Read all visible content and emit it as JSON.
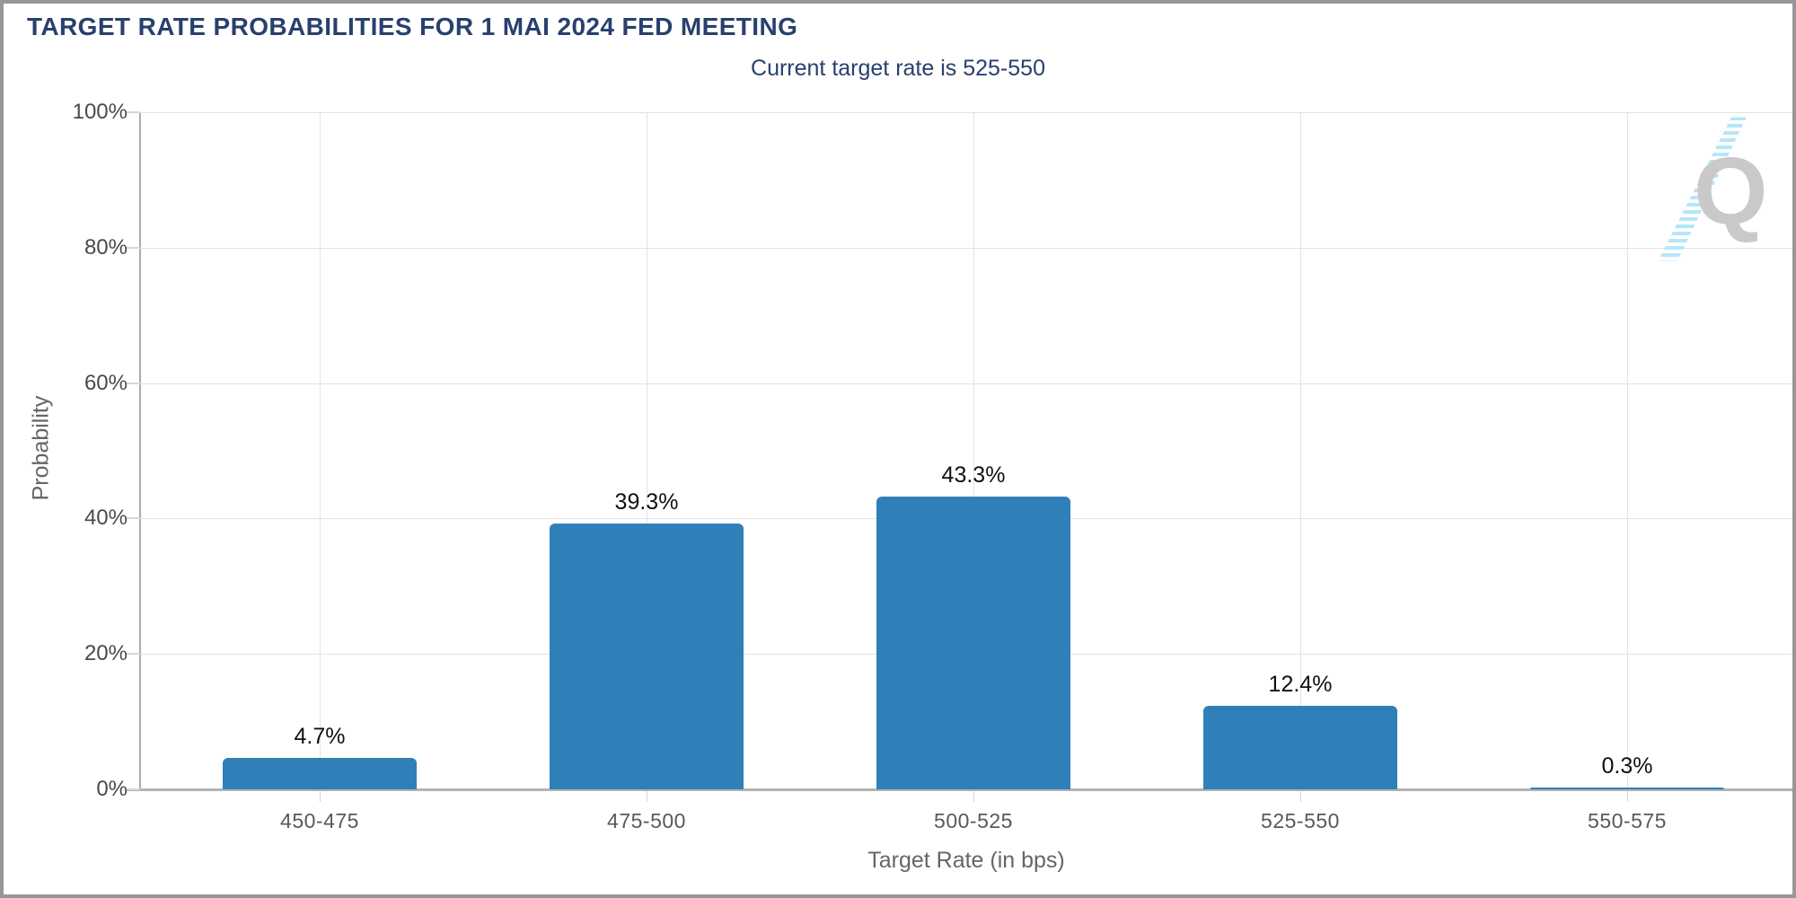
{
  "header": {
    "title": "TARGET RATE PROBABILITIES FOR 1 MAI 2024 FED MEETING",
    "subtitle": "Current target rate is 525-550"
  },
  "chart_data": {
    "type": "bar",
    "categories": [
      "450-475",
      "475-500",
      "500-525",
      "525-550",
      "550-575"
    ],
    "values": [
      4.7,
      39.3,
      43.3,
      12.4,
      0.3
    ],
    "value_labels": [
      "4.7%",
      "39.3%",
      "43.3%",
      "12.4%",
      "0.3%"
    ],
    "title": "TARGET RATE PROBABILITIES FOR 1 MAI 2024 FED MEETING",
    "subtitle": "Current target rate is 525-550",
    "xlabel": "Target Rate (in bps)",
    "ylabel": "Probability",
    "ylim": [
      0,
      100
    ],
    "ytick_labels": [
      "0%",
      "20%",
      "40%",
      "60%",
      "80%",
      "100%"
    ],
    "ytick_step": 20,
    "grid": true,
    "legend_position": "none",
    "bar_color": "#2F80B9"
  },
  "watermark": {
    "letter": "Q"
  },
  "colors": {
    "bar": "#2F80B9",
    "title_text": "#28406E",
    "value_text": "#111111",
    "ytick_text": "#4A4A4A",
    "xtick_text": "#595959",
    "axis_title_text": "#666666",
    "grid": "#E2E2E2",
    "axis_line": "#ABABAB",
    "baseline": "#B3B3B3",
    "tick": "#D6D6D6",
    "logo_gray": "#C9C9C9",
    "logo_blue": "#B5E6FA",
    "frame_border": "#97979B",
    "background": "#FFFFFF"
  }
}
